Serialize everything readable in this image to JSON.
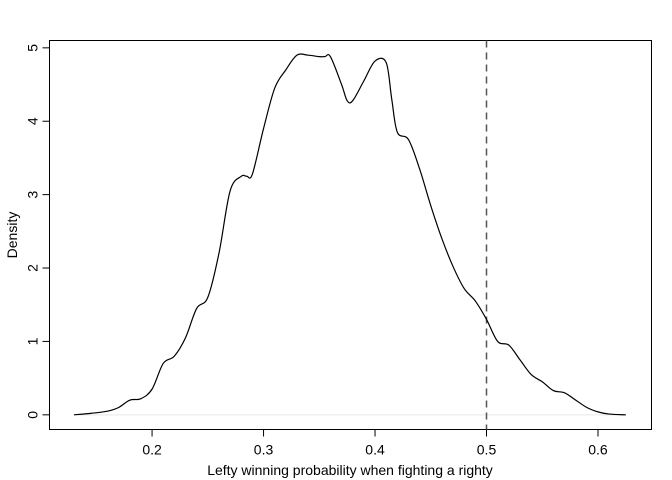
{
  "chart_data": {
    "type": "line",
    "title": "",
    "xlabel": "Lefty winning probability when fighting a righty",
    "ylabel": "Density",
    "xlim": [
      0.108,
      0.648
    ],
    "ylim": [
      -0.2,
      5.1
    ],
    "xticks": [
      0.2,
      0.3,
      0.4,
      0.5,
      0.6
    ],
    "xtick_labels": [
      "0.2",
      "0.3",
      "0.4",
      "0.5",
      "0.6"
    ],
    "yticks": [
      0,
      1,
      2,
      3,
      4,
      5
    ],
    "ytick_labels": [
      "0",
      "1",
      "2",
      "3",
      "4",
      "5"
    ],
    "grid": false,
    "baseline": 0,
    "reference_line": {
      "x": 0.5,
      "style": "dashed"
    },
    "series": [
      {
        "x": [
          0.13,
          0.145,
          0.16,
          0.17,
          0.18,
          0.19,
          0.2,
          0.21,
          0.22,
          0.23,
          0.24,
          0.25,
          0.26,
          0.27,
          0.28,
          0.285,
          0.29,
          0.3,
          0.31,
          0.32,
          0.33,
          0.34,
          0.35,
          0.355,
          0.36,
          0.37,
          0.375,
          0.38,
          0.39,
          0.4,
          0.41,
          0.415,
          0.42,
          0.43,
          0.44,
          0.45,
          0.46,
          0.47,
          0.48,
          0.49,
          0.5,
          0.51,
          0.52,
          0.53,
          0.54,
          0.55,
          0.56,
          0.57,
          0.58,
          0.59,
          0.6,
          0.61,
          0.625
        ],
        "y": [
          0.0,
          0.02,
          0.05,
          0.1,
          0.2,
          0.22,
          0.35,
          0.7,
          0.8,
          1.05,
          1.45,
          1.6,
          2.2,
          3.05,
          3.25,
          3.25,
          3.28,
          3.9,
          4.45,
          4.7,
          4.9,
          4.9,
          4.88,
          4.88,
          4.88,
          4.5,
          4.28,
          4.28,
          4.55,
          4.82,
          4.8,
          4.3,
          3.85,
          3.75,
          3.35,
          2.85,
          2.4,
          2.02,
          1.72,
          1.55,
          1.3,
          1.0,
          0.95,
          0.75,
          0.55,
          0.45,
          0.33,
          0.3,
          0.2,
          0.1,
          0.04,
          0.01,
          0.0
        ]
      }
    ]
  }
}
